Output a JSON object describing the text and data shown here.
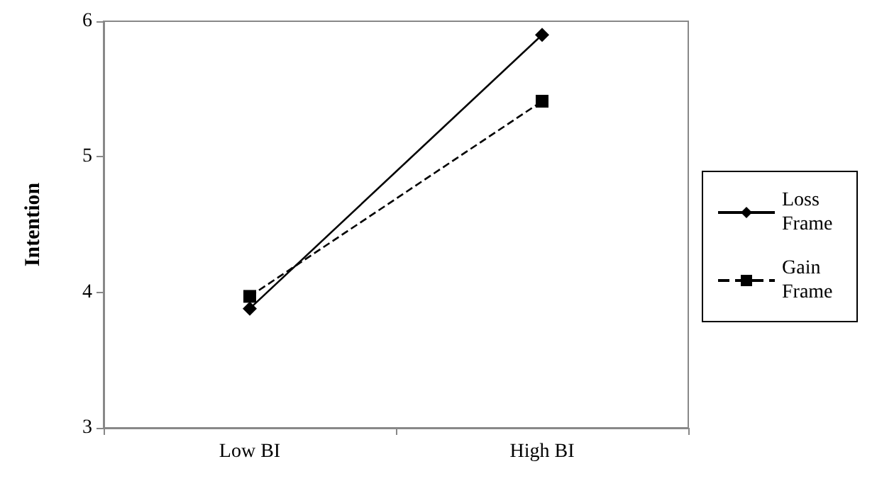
{
  "chart_data": {
    "type": "line",
    "ylabel": "Intention",
    "categories": [
      "Low BI",
      "High BI"
    ],
    "series": [
      {
        "name": "Loss Frame",
        "color": "#000000",
        "values": [
          3.88,
          5.9
        ],
        "marker": "diamond",
        "line_style": "solid"
      },
      {
        "name": "Gain Frame",
        "color": "#000000",
        "values": [
          3.97,
          5.41
        ],
        "marker": "square",
        "line_style": "dashed"
      }
    ],
    "ylim": [
      3,
      6
    ],
    "yticks": [
      3,
      4,
      5,
      6
    ],
    "grid": false,
    "legend": "right"
  }
}
